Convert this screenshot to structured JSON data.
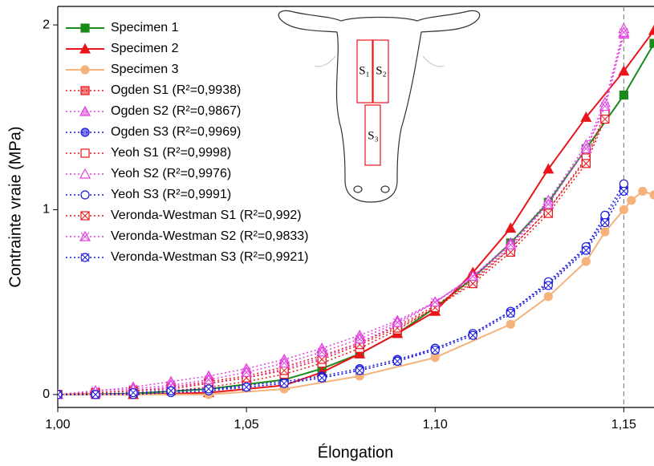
{
  "chart_data": {
    "type": "line",
    "xlabel": "Élongation",
    "ylabel": "Contrainte vraie (MPa)",
    "xlim": [
      1.0,
      1.158
    ],
    "ylim": [
      -0.07,
      2.1
    ],
    "xticks": [
      {
        "value": 1.0,
        "label": "1,00"
      },
      {
        "value": 1.05,
        "label": "1,05"
      },
      {
        "value": 1.1,
        "label": "1,10"
      },
      {
        "value": 1.15,
        "label": "1,15"
      }
    ],
    "yticks": [
      0,
      1,
      2
    ],
    "reference_line_x": 1.15,
    "legend": "upper-left",
    "inset_labels": [
      "S₁",
      "S₂",
      "S₃"
    ],
    "series": [
      {
        "name": "Specimen 1",
        "color": "#1a8a1a",
        "dash": "solid",
        "marker": "square",
        "marker_fill": "full",
        "x": [
          1.0,
          1.02,
          1.04,
          1.06,
          1.07,
          1.08,
          1.09,
          1.1,
          1.11,
          1.12,
          1.13,
          1.14,
          1.15,
          1.158
        ],
        "values": [
          0,
          0.005,
          0.03,
          0.08,
          0.14,
          0.22,
          0.33,
          0.47,
          0.63,
          0.82,
          1.04,
          1.33,
          1.62,
          1.9
        ]
      },
      {
        "name": "Specimen 2",
        "color": "#e8161b",
        "dash": "solid",
        "marker": "triangle",
        "marker_fill": "full",
        "x": [
          1.0,
          1.02,
          1.04,
          1.06,
          1.07,
          1.08,
          1.09,
          1.1,
          1.11,
          1.12,
          1.13,
          1.14,
          1.15,
          1.158
        ],
        "values": [
          0,
          0.0,
          0.01,
          0.05,
          0.12,
          0.22,
          0.33,
          0.45,
          0.66,
          0.9,
          1.22,
          1.5,
          1.75,
          1.97
        ]
      },
      {
        "name": "Specimen 3",
        "color": "#f5b27a",
        "dash": "solid",
        "marker": "circle",
        "marker_fill": "full",
        "x": [
          1.0,
          1.04,
          1.06,
          1.08,
          1.1,
          1.12,
          1.13,
          1.14,
          1.145,
          1.15,
          1.152,
          1.155,
          1.158
        ],
        "values": [
          0,
          0.0,
          0.03,
          0.1,
          0.2,
          0.38,
          0.53,
          0.72,
          0.88,
          1.0,
          1.05,
          1.1,
          1.08
        ]
      },
      {
        "name": "Ogden S1 (R²=0,9938)",
        "color": "#e8161b",
        "dash": "dotted",
        "marker": "square",
        "marker_fill": "half",
        "x": [
          1.0,
          1.01,
          1.02,
          1.03,
          1.04,
          1.05,
          1.06,
          1.07,
          1.08,
          1.09,
          1.1,
          1.11,
          1.12,
          1.13,
          1.14,
          1.145
        ],
        "values": [
          0,
          0.01,
          0.02,
          0.04,
          0.07,
          0.1,
          0.15,
          0.21,
          0.28,
          0.37,
          0.48,
          0.62,
          0.79,
          1.0,
          1.27,
          1.5
        ]
      },
      {
        "name": "Ogden S2 (R²=0,9867)",
        "color": "#e040e0",
        "dash": "dotted",
        "marker": "triangle",
        "marker_fill": "half",
        "x": [
          1.0,
          1.01,
          1.02,
          1.03,
          1.04,
          1.05,
          1.06,
          1.07,
          1.08,
          1.09,
          1.1,
          1.11,
          1.12,
          1.13,
          1.14,
          1.145,
          1.15
        ],
        "values": [
          0,
          0.02,
          0.04,
          0.07,
          0.1,
          0.14,
          0.19,
          0.25,
          0.32,
          0.4,
          0.5,
          0.63,
          0.8,
          1.03,
          1.33,
          1.55,
          1.95
        ]
      },
      {
        "name": "Ogden S3 (R²=0,9969)",
        "color": "#1a1ae0",
        "dash": "dotted",
        "marker": "circle",
        "marker_fill": "half",
        "x": [
          1.0,
          1.01,
          1.02,
          1.03,
          1.04,
          1.05,
          1.06,
          1.07,
          1.08,
          1.09,
          1.1,
          1.11,
          1.12,
          1.13,
          1.14,
          1.145,
          1.15
        ],
        "values": [
          0,
          0.0,
          0.01,
          0.02,
          0.03,
          0.05,
          0.07,
          0.1,
          0.14,
          0.19,
          0.25,
          0.33,
          0.45,
          0.6,
          0.79,
          0.95,
          1.12
        ]
      },
      {
        "name": "Yeoh S1 (R²=0,9998)",
        "color": "#e8161b",
        "dash": "dotted",
        "marker": "square",
        "marker_fill": "open",
        "x": [
          1.0,
          1.01,
          1.02,
          1.03,
          1.04,
          1.05,
          1.06,
          1.07,
          1.08,
          1.09,
          1.1,
          1.11,
          1.12,
          1.13,
          1.14,
          1.145
        ],
        "values": [
          0,
          0.0,
          0.01,
          0.02,
          0.04,
          0.07,
          0.11,
          0.17,
          0.25,
          0.35,
          0.47,
          0.61,
          0.79,
          1.0,
          1.28,
          1.52
        ]
      },
      {
        "name": "Yeoh S2 (R²=0,9976)",
        "color": "#e040e0",
        "dash": "dotted",
        "marker": "triangle",
        "marker_fill": "open",
        "x": [
          1.0,
          1.01,
          1.02,
          1.03,
          1.04,
          1.05,
          1.06,
          1.07,
          1.08,
          1.09,
          1.1,
          1.11,
          1.12,
          1.13,
          1.14,
          1.145,
          1.15
        ],
        "values": [
          0,
          0.01,
          0.02,
          0.04,
          0.06,
          0.09,
          0.14,
          0.2,
          0.28,
          0.38,
          0.5,
          0.64,
          0.82,
          1.05,
          1.35,
          1.58,
          1.98
        ]
      },
      {
        "name": "Yeoh S3 (R²=0,9991)",
        "color": "#1a1ae0",
        "dash": "dotted",
        "marker": "circle",
        "marker_fill": "open",
        "x": [
          1.0,
          1.01,
          1.02,
          1.03,
          1.04,
          1.05,
          1.06,
          1.07,
          1.08,
          1.09,
          1.1,
          1.11,
          1.12,
          1.13,
          1.14,
          1.145,
          1.15
        ],
        "values": [
          0,
          0.0,
          0.0,
          0.01,
          0.02,
          0.04,
          0.06,
          0.09,
          0.13,
          0.18,
          0.25,
          0.33,
          0.45,
          0.61,
          0.8,
          0.97,
          1.14
        ]
      },
      {
        "name": "Veronda-Westman S1 (R²=0,992)",
        "color": "#e8161b",
        "dash": "dotted",
        "marker": "square",
        "marker_fill": "cross",
        "x": [
          1.0,
          1.01,
          1.02,
          1.03,
          1.04,
          1.05,
          1.06,
          1.07,
          1.08,
          1.09,
          1.1,
          1.11,
          1.12,
          1.13,
          1.14,
          1.145
        ],
        "values": [
          0,
          0.01,
          0.02,
          0.03,
          0.06,
          0.09,
          0.13,
          0.19,
          0.27,
          0.36,
          0.47,
          0.6,
          0.77,
          0.98,
          1.25,
          1.49
        ]
      },
      {
        "name": "Veronda-Westman S2 (R²=0,9833)",
        "color": "#e040e0",
        "dash": "dotted",
        "marker": "triangle",
        "marker_fill": "cross",
        "x": [
          1.0,
          1.01,
          1.02,
          1.03,
          1.04,
          1.05,
          1.06,
          1.07,
          1.08,
          1.09,
          1.1,
          1.11,
          1.12,
          1.13,
          1.14,
          1.145,
          1.15
        ],
        "values": [
          0,
          0.02,
          0.03,
          0.05,
          0.08,
          0.12,
          0.17,
          0.23,
          0.3,
          0.39,
          0.5,
          0.64,
          0.81,
          1.03,
          1.33,
          1.56,
          1.96
        ]
      },
      {
        "name": "Veronda-Westman S3 (R²=0,9921)",
        "color": "#1a1ae0",
        "dash": "dotted",
        "marker": "circle",
        "marker_fill": "cross",
        "x": [
          1.0,
          1.01,
          1.02,
          1.03,
          1.04,
          1.05,
          1.06,
          1.07,
          1.08,
          1.09,
          1.1,
          1.11,
          1.12,
          1.13,
          1.14,
          1.145,
          1.15
        ],
        "values": [
          0,
          0.0,
          0.01,
          0.02,
          0.03,
          0.04,
          0.06,
          0.09,
          0.13,
          0.18,
          0.24,
          0.32,
          0.44,
          0.59,
          0.78,
          0.93,
          1.1
        ]
      }
    ]
  }
}
